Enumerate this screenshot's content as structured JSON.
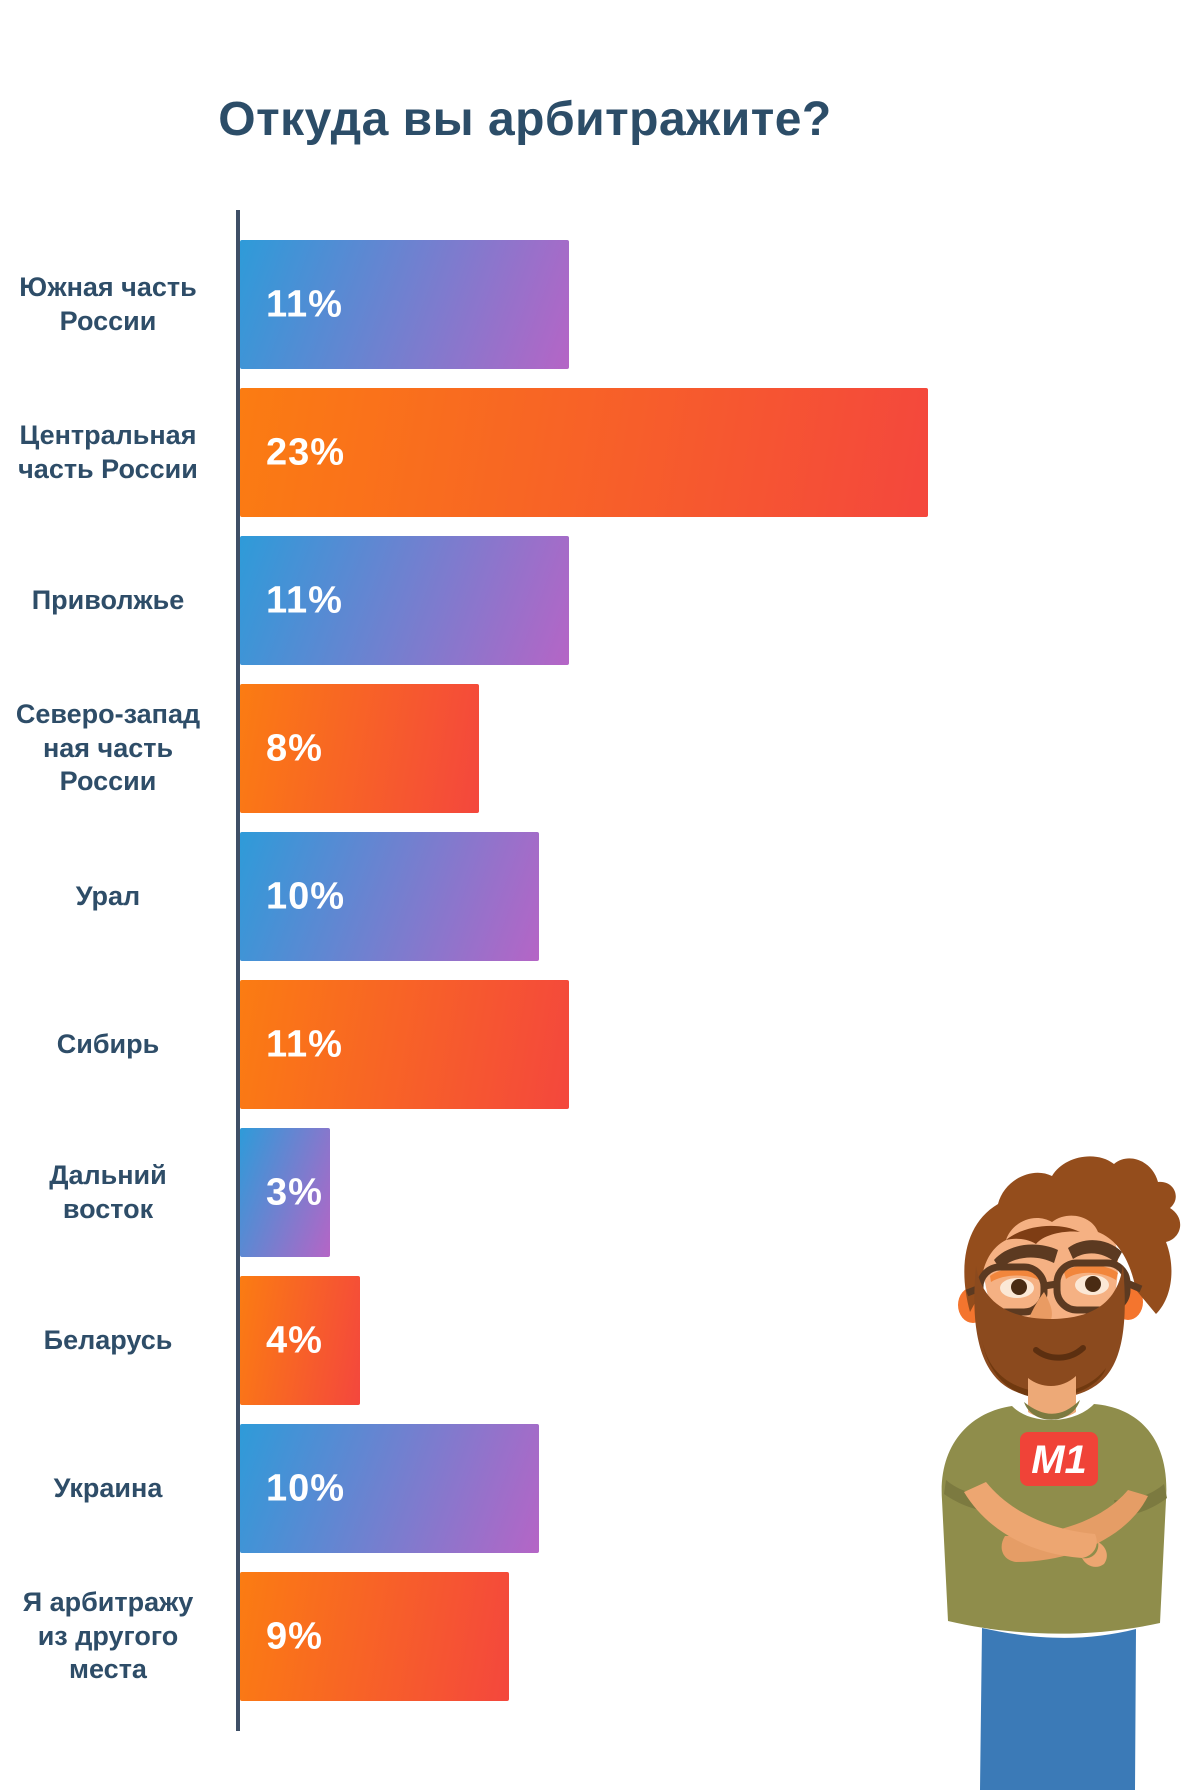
{
  "title": "Откуда вы арбитражите?",
  "chart_data": {
    "type": "bar",
    "orientation": "horizontal",
    "title": "Откуда вы арбитражите?",
    "unit": "%",
    "grid": false,
    "xlim": [
      0,
      25
    ],
    "categories": [
      "Южная часть России",
      "Центральная часть России",
      "Приволжье",
      "Северо-западная часть России",
      "Урал",
      "Сибирь",
      "Дальний восток",
      "Беларусь",
      "Украина",
      "Я арбитражу из другого места"
    ],
    "values": [
      11,
      23,
      11,
      8,
      10,
      11,
      3,
      4,
      10,
      9
    ],
    "bars": [
      {
        "label_display": "Южная часть\nРоссии",
        "value": 11,
        "value_label": "11%",
        "style": "blue"
      },
      {
        "label_display": "Центральная\nчасть России",
        "value": 23,
        "value_label": "23%",
        "style": "orange"
      },
      {
        "label_display": "Приволжье",
        "value": 11,
        "value_label": "11%",
        "style": "blue"
      },
      {
        "label_display": "Северо-запад\nная часть\nРоссии",
        "value": 8,
        "value_label": "8%",
        "style": "orange"
      },
      {
        "label_display": "Урал",
        "value": 10,
        "value_label": "10%",
        "style": "blue"
      },
      {
        "label_display": "Сибирь",
        "value": 11,
        "value_label": "11%",
        "style": "orange"
      },
      {
        "label_display": "Дальний\nвосток",
        "value": 3,
        "value_label": "3%",
        "style": "blue"
      },
      {
        "label_display": "Беларусь",
        "value": 4,
        "value_label": "4%",
        "style": "orange"
      },
      {
        "label_display": "Украина",
        "value": 10,
        "value_label": "10%",
        "style": "blue"
      },
      {
        "label_display": "Я арбитражу\nиз другого\nместа",
        "value": 9,
        "value_label": "9%",
        "style": "orange"
      }
    ],
    "colors": {
      "blue_gradient_start": "#2E9BD9",
      "blue_gradient_end": "#B565C6",
      "orange_gradient_start": "#FB7C12",
      "orange_gradient_end": "#F4473D",
      "axis": "#3E4F66",
      "label_text": "#2E4D68",
      "value_text": "#FFFFFF",
      "title_text": "#2C4D68"
    }
  },
  "mascot": {
    "badge_label": "M1",
    "badge_color": "#F04338"
  }
}
